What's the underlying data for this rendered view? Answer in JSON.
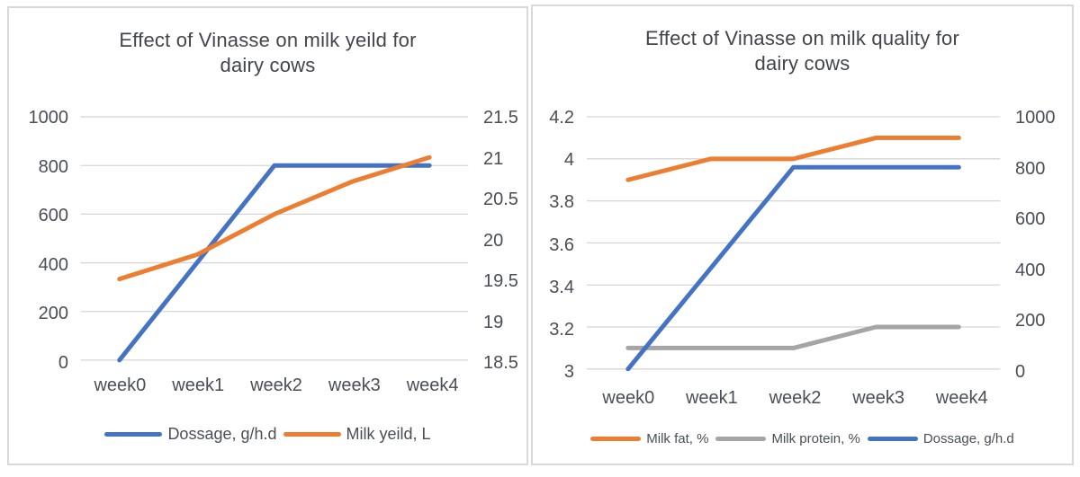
{
  "style": {
    "background": "#ffffff",
    "panel_border_color": "#d9d9d9",
    "gridline_color": "#d6d6d6",
    "title_color": "#42454d",
    "axis_label_color": "#4a4e57",
    "accent_blue": "#4472C4",
    "accent_orange": "#ED7D31",
    "accent_gray": "#A5A5A5"
  },
  "chart_data": [
    {
      "type": "line",
      "title": "Effect of Vinasse on milk yeild for\ndairy cows",
      "categories": [
        "week0",
        "week1",
        "week2",
        "week3",
        "week4"
      ],
      "xlabel": "",
      "ylabel": "",
      "grid": true,
      "legend_position": "bottom",
      "left_axis": {
        "ticks": [
          0,
          200,
          400,
          600,
          800,
          1000
        ],
        "range": [
          0,
          1000
        ]
      },
      "right_axis": {
        "ticks": [
          18.5,
          19,
          19.5,
          20,
          20.5,
          21,
          21.5
        ],
        "range": [
          18.5,
          21.5
        ]
      },
      "series": [
        {
          "name": "Dossage, g/h.d",
          "color": "#4472C4",
          "axis": "left",
          "values": [
            0,
            400,
            800,
            800,
            800
          ]
        },
        {
          "name": "Milk yeild, L",
          "color": "#ED7D31",
          "axis": "right",
          "values": [
            19.5,
            19.8,
            20.3,
            20.7,
            21
          ]
        }
      ]
    },
    {
      "type": "line",
      "title": "Effect of Vinasse on milk quality for\ndairy cows",
      "categories": [
        "week0",
        "week1",
        "week2",
        "week3",
        "week4"
      ],
      "xlabel": "",
      "ylabel": "",
      "grid": true,
      "legend_position": "bottom",
      "left_axis": {
        "ticks": [
          3,
          3.2,
          3.4,
          3.6,
          3.8,
          4,
          4.2
        ],
        "range": [
          3,
          4.2
        ]
      },
      "right_axis": {
        "ticks": [
          0,
          200,
          400,
          600,
          800,
          1000
        ],
        "range": [
          0,
          1000
        ]
      },
      "series": [
        {
          "name": "Milk fat, %",
          "color": "#ED7D31",
          "axis": "left",
          "values": [
            3.9,
            4,
            4,
            4.1,
            4.1
          ]
        },
        {
          "name": "Milk protein, %",
          "color": "#A5A5A5",
          "axis": "left",
          "values": [
            3.1,
            3.1,
            3.1,
            3.2,
            3.2
          ]
        },
        {
          "name": "Dossage, g/h.d",
          "color": "#4472C4",
          "axis": "right",
          "values": [
            0,
            400,
            800,
            800,
            800
          ]
        }
      ]
    }
  ]
}
